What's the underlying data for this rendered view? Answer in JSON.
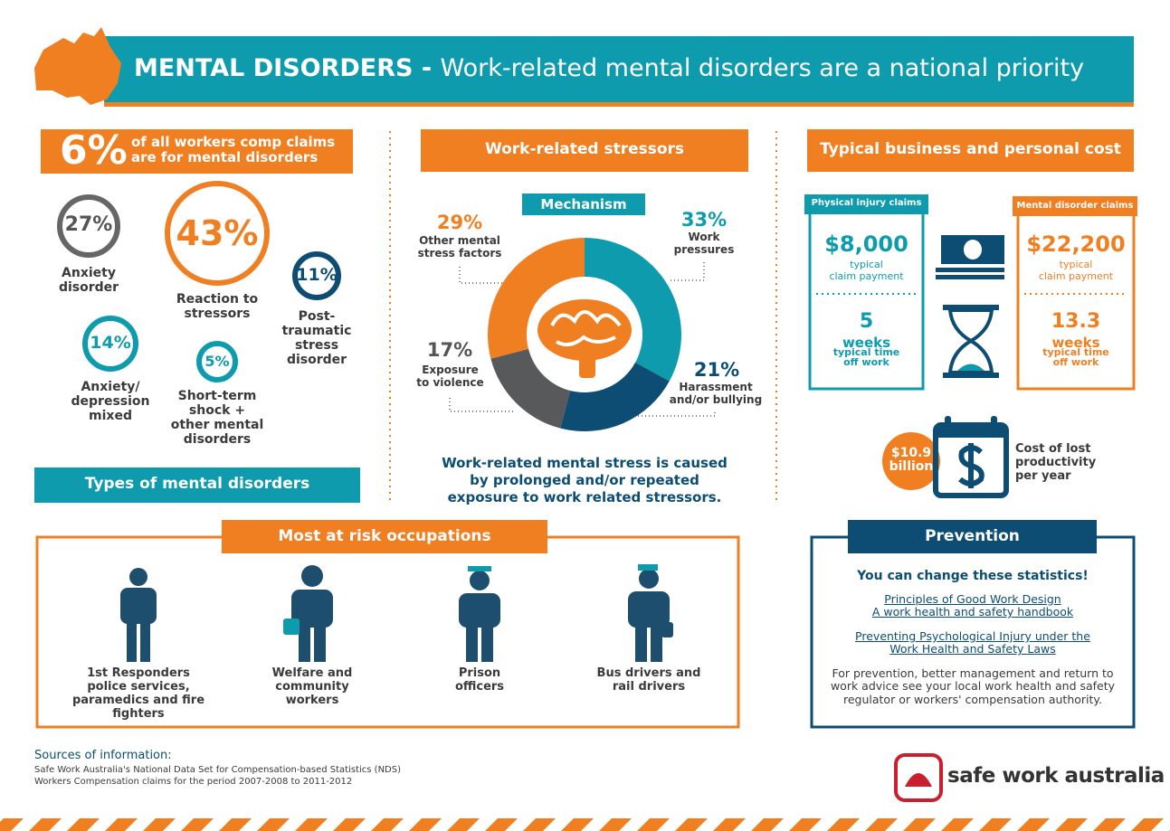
{
  "header": {
    "title": "MENTAL DISORDERS -",
    "subtitle": "Work-related mental disorders are a national priority"
  },
  "claims_share": {
    "value": "6%",
    "text": "of all workers comp claims\nare for mental disorders"
  },
  "disorder_types": {
    "title": "Types of mental disorders",
    "items": [
      {
        "value": "27%",
        "label": "Anxiety\ndisorder"
      },
      {
        "value": "43%",
        "label": "Reaction to\nstressors"
      },
      {
        "value": "11%",
        "label": "Post-\ntraumatic\nstress\ndisorder"
      },
      {
        "value": "14%",
        "label": "Anxiety/\ndepression\nmixed"
      },
      {
        "value": "5%",
        "label": "Short-term\nshock +\nother mental\ndisorders"
      }
    ]
  },
  "stressors": {
    "title": "Work-related stressors",
    "mechanism": "Mechanism",
    "items": [
      {
        "value": 33,
        "value_label": "33%",
        "label": "Work\npressures",
        "color": "#0e9bae"
      },
      {
        "value": 21,
        "value_label": "21%",
        "label": "Harassment\nand/or bullying",
        "color": "#0d4d73"
      },
      {
        "value": 17,
        "value_label": "17%",
        "label": "Exposure\nto violence",
        "color": "#58595b"
      },
      {
        "value": 29,
        "value_label": "29%",
        "label": "Other mental\nstress factors",
        "color": "#f07f22"
      }
    ],
    "note": "Work-related mental stress is caused\nby prolonged and/or repeated\nexposure to work related stressors."
  },
  "cost": {
    "title": "Typical business and personal cost",
    "physical": {
      "heading": "Physical injury claims",
      "payment": "$8,000",
      "payment_label": "typical\nclaim payment",
      "time": "5",
      "time_unit": "weeks",
      "time_label": "typical time\noff work"
    },
    "mental": {
      "heading": "Mental disorder claims",
      "payment": "$22,200",
      "payment_label": "typical\nclaim payment",
      "time": "13.3",
      "time_unit": "weeks",
      "time_label": "typical time\noff work"
    },
    "productivity": {
      "value": "$10.9\nbillion",
      "label": "Cost of lost\nproductivity\nper year"
    }
  },
  "occupations": {
    "title": "Most at risk occupations",
    "items": [
      "1st Responders\npolice services,\nparamedics and fire fighters",
      "Welfare and\ncommunity\nworkers",
      "Prison\nofficers",
      "Bus drivers and\nrail drivers"
    ]
  },
  "prevention": {
    "title": "Prevention",
    "lead": "You can change these statistics!",
    "links": [
      "Principles of Good Work Design\nA work health and safety handbook",
      "Preventing Psychological Injury under the\nWork Health and Safety Laws"
    ],
    "text": "For prevention, better management and return to\nwork advice see your local work health and safety\nregulator or workers' compensation authority."
  },
  "sources": {
    "heading": "Sources of information:",
    "lines": [
      "Safe Work Australia's National Data Set for Compensation-based Statistics (NDS)",
      "Workers Compensation claims for the period 2007-2008 to 2011-2012"
    ]
  },
  "logo": "safe work australia"
}
